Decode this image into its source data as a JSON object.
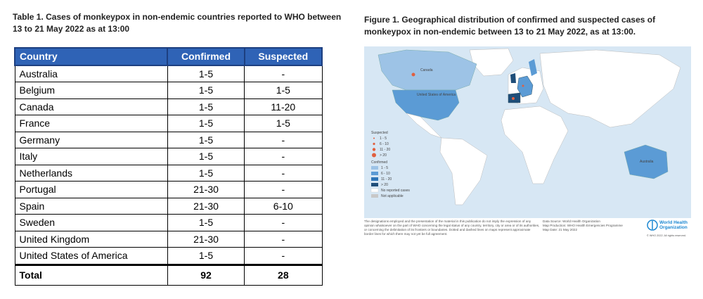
{
  "table": {
    "title": "Table 1. Cases of monkeypox in non-endemic countries reported to WHO between 13 to 21 May 2022 as at 13:00",
    "header": [
      "Country",
      "Confirmed",
      "Suspected"
    ],
    "rows": [
      [
        "Australia",
        "1-5",
        "-"
      ],
      [
        "Belgium",
        "1-5",
        "1-5"
      ],
      [
        "Canada",
        "1-5",
        "11-20"
      ],
      [
        "France",
        "1-5",
        "1-5"
      ],
      [
        "Germany",
        "1-5",
        "-"
      ],
      [
        "Italy",
        "1-5",
        "-"
      ],
      [
        "Netherlands",
        "1-5",
        "-"
      ],
      [
        "Portugal",
        "21-30",
        "-"
      ],
      [
        "Spain",
        "21-30",
        "6-10"
      ],
      [
        "Sweden",
        "1-5",
        "-"
      ],
      [
        "United Kingdom",
        "21-30",
        "-"
      ],
      [
        "United States of America",
        "1-5",
        "-"
      ]
    ],
    "total": [
      "Total",
      "92",
      "28"
    ]
  },
  "figure": {
    "title": "Figure 1. Geographical distribution of confirmed and suspected cases of monkeypox in non-endemic between 13 to 21 May 2022, as at 13:00.",
    "map_labels": [
      "Canada",
      "United States of America",
      "Australia"
    ],
    "legend": {
      "suspected_title": "Suspected",
      "suspected": [
        "1 - 5",
        "6 - 10",
        "11 - 20",
        "> 20"
      ],
      "confirmed_title": "Confirmed",
      "confirmed": [
        "1 - 5",
        "6 - 10",
        "11 - 20",
        "> 20"
      ],
      "no_cases": "No reported cases",
      "not_applicable": "Not applicable"
    },
    "disclaimer": "The designations employed and the presentation of the material in this publication do not imply the expression of any opinion whatsoever on the part of WHO concerning the legal status of any country, territory, city or area or of its authorities, or concerning the delimitation of its frontiers or boundaries. Dotted and dashed lines on maps represent approximate border lines for which there may not yet be full agreement.",
    "source": [
      "Data Source: World Health Organization",
      "Map Production: WHO Health Emergencies Programme",
      "Map Date: 21 May 2022"
    ],
    "logo": "World Health Organization",
    "copyright": "© WHO 2022. All rights reserved."
  }
}
